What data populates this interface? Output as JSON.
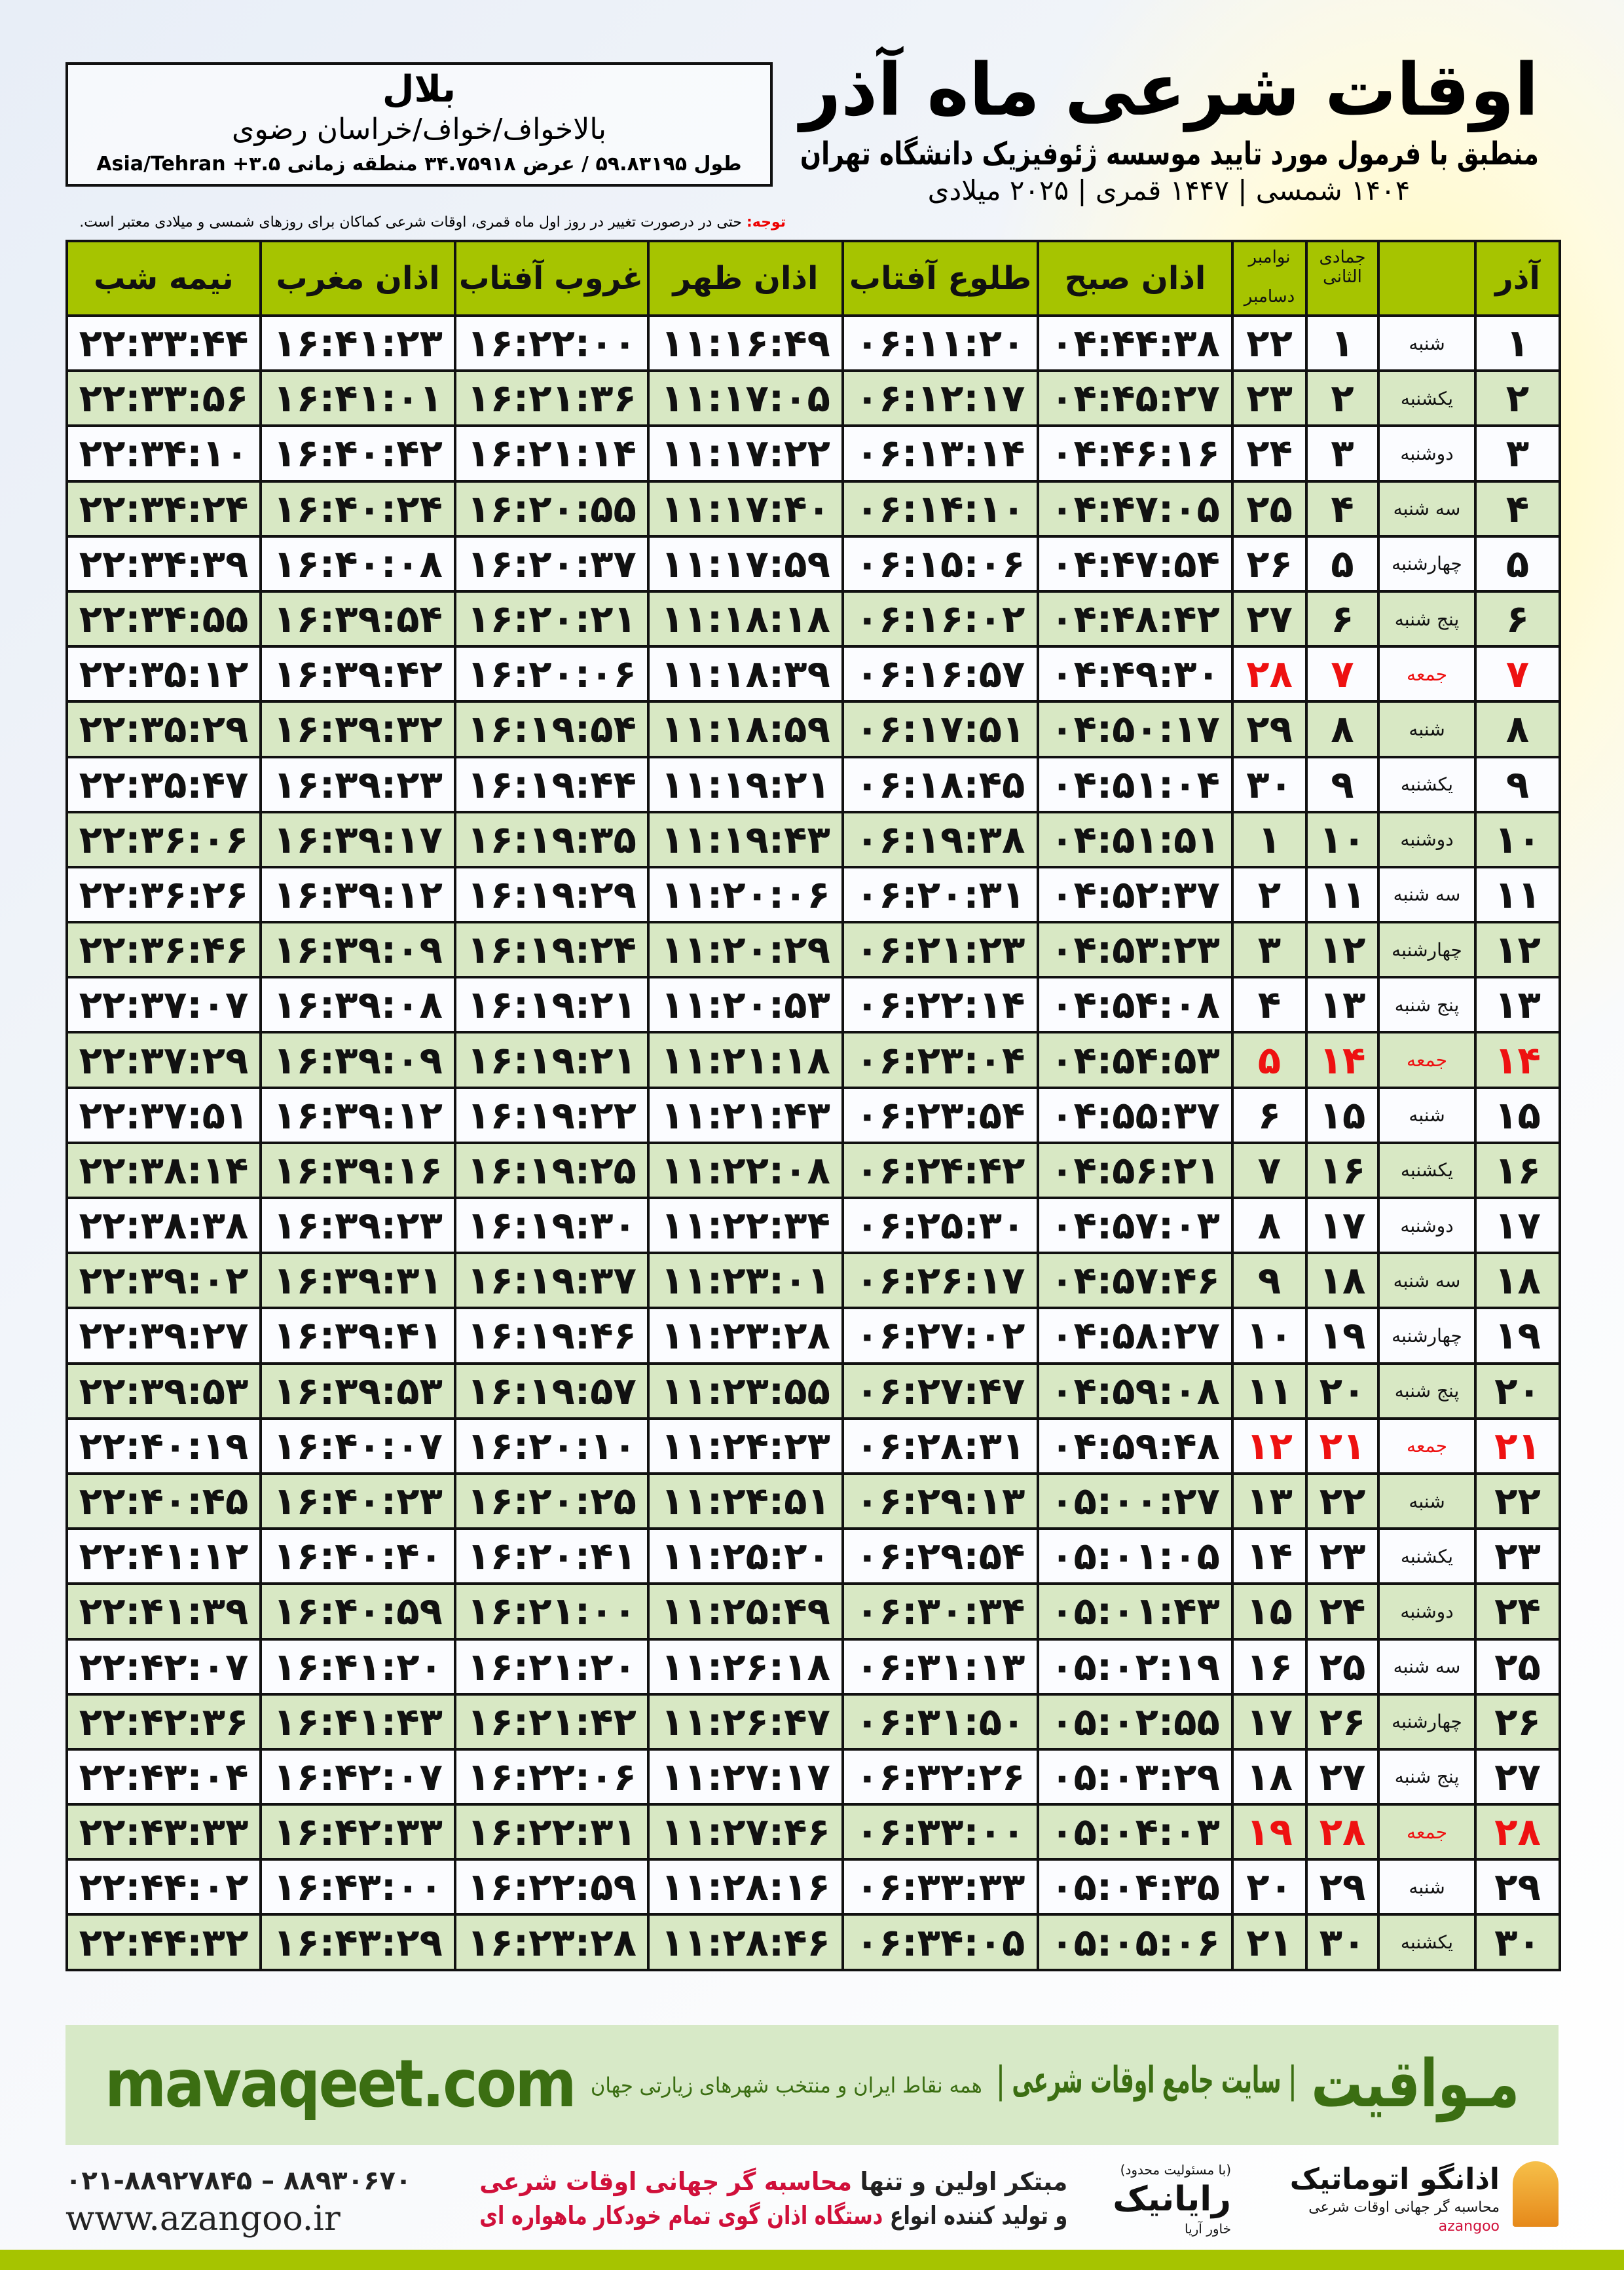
{
  "header": {
    "title": "اوقات شرعی ماه آذر",
    "subtitle": "منطبق با فرمول مورد تایید موسسه ژئوفیزیک دانشگاه تهران",
    "dateline": "۱۴۰۴ شمسی | ۱۴۴۷ قمری | ۲۰۲۵ میلادی"
  },
  "location": {
    "name": "بلال",
    "path": "بالاخواف/خواف/خراسان رضوی",
    "coords": "طول ۵۹.۸۳۱۹۵ / عرض ۳۴.۷۵۹۱۸ منطقه زمانی ۳.۵+ Asia/Tehran"
  },
  "note": {
    "label": "توجه:",
    "text": " حتی در درصورت تغییر در روز اول ماه قمری، اوقات شرعی کماکان برای روزهای شمسی و میلادی معتبر است."
  },
  "columns": {
    "midnight": "نیمه شب",
    "maghrib": "اذان مغرب",
    "sunset": "غروب آفتاب",
    "zuhr": "اذان ظهر",
    "sunrise": "طلوع آفتاب",
    "fajr": "اذان صبح",
    "gregorian_top": "نوامبر",
    "gregorian_bottom": "دسامبر",
    "hijri": "جمادی الثانی",
    "azar": "آذر"
  },
  "colors": {
    "header_green": "#a6c400",
    "row_green": "#d8e8c4",
    "holiday_red": "#e11111",
    "brand_green": "#3b6e12"
  },
  "rows": [
    [
      "۱",
      "شنبه",
      "۱",
      "۲۲",
      "۰۴:۴۴:۳۸",
      "۰۶:۱۱:۲۰",
      "۱۱:۱۶:۴۹",
      "۱۶:۲۲:۰۰",
      "۱۶:۴۱:۲۳",
      "۲۲:۳۳:۴۴"
    ],
    [
      "۲",
      "یکشنبه",
      "۲",
      "۲۳",
      "۰۴:۴۵:۲۷",
      "۰۶:۱۲:۱۷",
      "۱۱:۱۷:۰۵",
      "۱۶:۲۱:۳۶",
      "۱۶:۴۱:۰۱",
      "۲۲:۳۳:۵۶"
    ],
    [
      "۳",
      "دوشنبه",
      "۳",
      "۲۴",
      "۰۴:۴۶:۱۶",
      "۰۶:۱۳:۱۴",
      "۱۱:۱۷:۲۲",
      "۱۶:۲۱:۱۴",
      "۱۶:۴۰:۴۲",
      "۲۲:۳۴:۱۰"
    ],
    [
      "۴",
      "سه شنبه",
      "۴",
      "۲۵",
      "۰۴:۴۷:۰۵",
      "۰۶:۱۴:۱۰",
      "۱۱:۱۷:۴۰",
      "۱۶:۲۰:۵۵",
      "۱۶:۴۰:۲۴",
      "۲۲:۳۴:۲۴"
    ],
    [
      "۵",
      "چهارشنبه",
      "۵",
      "۲۶",
      "۰۴:۴۷:۵۴",
      "۰۶:۱۵:۰۶",
      "۱۱:۱۷:۵۹",
      "۱۶:۲۰:۳۷",
      "۱۶:۴۰:۰۸",
      "۲۲:۳۴:۳۹"
    ],
    [
      "۶",
      "پنج شنبه",
      "۶",
      "۲۷",
      "۰۴:۴۸:۴۲",
      "۰۶:۱۶:۰۲",
      "۱۱:۱۸:۱۸",
      "۱۶:۲۰:۲۱",
      "۱۶:۳۹:۵۴",
      "۲۲:۳۴:۵۵"
    ],
    [
      "۷",
      "جمعه",
      "۷",
      "۲۸",
      "۰۴:۴۹:۳۰",
      "۰۶:۱۶:۵۷",
      "۱۱:۱۸:۳۹",
      "۱۶:۲۰:۰۶",
      "۱۶:۳۹:۴۲",
      "۲۲:۳۵:۱۲"
    ],
    [
      "۸",
      "شنبه",
      "۸",
      "۲۹",
      "۰۴:۵۰:۱۷",
      "۰۶:۱۷:۵۱",
      "۱۱:۱۸:۵۹",
      "۱۶:۱۹:۵۴",
      "۱۶:۳۹:۳۲",
      "۲۲:۳۵:۲۹"
    ],
    [
      "۹",
      "یکشنبه",
      "۹",
      "۳۰",
      "۰۴:۵۱:۰۴",
      "۰۶:۱۸:۴۵",
      "۱۱:۱۹:۲۱",
      "۱۶:۱۹:۴۴",
      "۱۶:۳۹:۲۳",
      "۲۲:۳۵:۴۷"
    ],
    [
      "۱۰",
      "دوشنبه",
      "۱۰",
      "۱",
      "۰۴:۵۱:۵۱",
      "۰۶:۱۹:۳۸",
      "۱۱:۱۹:۴۳",
      "۱۶:۱۹:۳۵",
      "۱۶:۳۹:۱۷",
      "۲۲:۳۶:۰۶"
    ],
    [
      "۱۱",
      "سه شنبه",
      "۱۱",
      "۲",
      "۰۴:۵۲:۳۷",
      "۰۶:۲۰:۳۱",
      "۱۱:۲۰:۰۶",
      "۱۶:۱۹:۲۹",
      "۱۶:۳۹:۱۲",
      "۲۲:۳۶:۲۶"
    ],
    [
      "۱۲",
      "چهارشنبه",
      "۱۲",
      "۳",
      "۰۴:۵۳:۲۳",
      "۰۶:۲۱:۲۳",
      "۱۱:۲۰:۲۹",
      "۱۶:۱۹:۲۴",
      "۱۶:۳۹:۰۹",
      "۲۲:۳۶:۴۶"
    ],
    [
      "۱۳",
      "پنج شنبه",
      "۱۳",
      "۴",
      "۰۴:۵۴:۰۸",
      "۰۶:۲۲:۱۴",
      "۱۱:۲۰:۵۳",
      "۱۶:۱۹:۲۱",
      "۱۶:۳۹:۰۸",
      "۲۲:۳۷:۰۷"
    ],
    [
      "۱۴",
      "جمعه",
      "۱۴",
      "۵",
      "۰۴:۵۴:۵۳",
      "۰۶:۲۳:۰۴",
      "۱۱:۲۱:۱۸",
      "۱۶:۱۹:۲۱",
      "۱۶:۳۹:۰۹",
      "۲۲:۳۷:۲۹"
    ],
    [
      "۱۵",
      "شنبه",
      "۱۵",
      "۶",
      "۰۴:۵۵:۳۷",
      "۰۶:۲۳:۵۴",
      "۱۱:۲۱:۴۳",
      "۱۶:۱۹:۲۲",
      "۱۶:۳۹:۱۲",
      "۲۲:۳۷:۵۱"
    ],
    [
      "۱۶",
      "یکشنبه",
      "۱۶",
      "۷",
      "۰۴:۵۶:۲۱",
      "۰۶:۲۴:۴۲",
      "۱۱:۲۲:۰۸",
      "۱۶:۱۹:۲۵",
      "۱۶:۳۹:۱۶",
      "۲۲:۳۸:۱۴"
    ],
    [
      "۱۷",
      "دوشنبه",
      "۱۷",
      "۸",
      "۰۴:۵۷:۰۳",
      "۰۶:۲۵:۳۰",
      "۱۱:۲۲:۳۴",
      "۱۶:۱۹:۳۰",
      "۱۶:۳۹:۲۳",
      "۲۲:۳۸:۳۸"
    ],
    [
      "۱۸",
      "سه شنبه",
      "۱۸",
      "۹",
      "۰۴:۵۷:۴۶",
      "۰۶:۲۶:۱۷",
      "۱۱:۲۳:۰۱",
      "۱۶:۱۹:۳۷",
      "۱۶:۳۹:۳۱",
      "۲۲:۳۹:۰۲"
    ],
    [
      "۱۹",
      "چهارشنبه",
      "۱۹",
      "۱۰",
      "۰۴:۵۸:۲۷",
      "۰۶:۲۷:۰۲",
      "۱۱:۲۳:۲۸",
      "۱۶:۱۹:۴۶",
      "۱۶:۳۹:۴۱",
      "۲۲:۳۹:۲۷"
    ],
    [
      "۲۰",
      "پنج شنبه",
      "۲۰",
      "۱۱",
      "۰۴:۵۹:۰۸",
      "۰۶:۲۷:۴۷",
      "۱۱:۲۳:۵۵",
      "۱۶:۱۹:۵۷",
      "۱۶:۳۹:۵۳",
      "۲۲:۳۹:۵۳"
    ],
    [
      "۲۱",
      "جمعه",
      "۲۱",
      "۱۲",
      "۰۴:۵۹:۴۸",
      "۰۶:۲۸:۳۱",
      "۱۱:۲۴:۲۳",
      "۱۶:۲۰:۱۰",
      "۱۶:۴۰:۰۷",
      "۲۲:۴۰:۱۹"
    ],
    [
      "۲۲",
      "شنبه",
      "۲۲",
      "۱۳",
      "۰۵:۰۰:۲۷",
      "۰۶:۲۹:۱۳",
      "۱۱:۲۴:۵۱",
      "۱۶:۲۰:۲۵",
      "۱۶:۴۰:۲۳",
      "۲۲:۴۰:۴۵"
    ],
    [
      "۲۳",
      "یکشنبه",
      "۲۳",
      "۱۴",
      "۰۵:۰۱:۰۵",
      "۰۶:۲۹:۵۴",
      "۱۱:۲۵:۲۰",
      "۱۶:۲۰:۴۱",
      "۱۶:۴۰:۴۰",
      "۲۲:۴۱:۱۲"
    ],
    [
      "۲۴",
      "دوشنبه",
      "۲۴",
      "۱۵",
      "۰۵:۰۱:۴۳",
      "۰۶:۳۰:۳۴",
      "۱۱:۲۵:۴۹",
      "۱۶:۲۱:۰۰",
      "۱۶:۴۰:۵۹",
      "۲۲:۴۱:۳۹"
    ],
    [
      "۲۵",
      "سه شنبه",
      "۲۵",
      "۱۶",
      "۰۵:۰۲:۱۹",
      "۰۶:۳۱:۱۳",
      "۱۱:۲۶:۱۸",
      "۱۶:۲۱:۲۰",
      "۱۶:۴۱:۲۰",
      "۲۲:۴۲:۰۷"
    ],
    [
      "۲۶",
      "چهارشنبه",
      "۲۶",
      "۱۷",
      "۰۵:۰۲:۵۵",
      "۰۶:۳۱:۵۰",
      "۱۱:۲۶:۴۷",
      "۱۶:۲۱:۴۲",
      "۱۶:۴۱:۴۳",
      "۲۲:۴۲:۳۶"
    ],
    [
      "۲۷",
      "پنج شنبه",
      "۲۷",
      "۱۸",
      "۰۵:۰۳:۲۹",
      "۰۶:۳۲:۲۶",
      "۱۱:۲۷:۱۷",
      "۱۶:۲۲:۰۶",
      "۱۶:۴۲:۰۷",
      "۲۲:۴۳:۰۴"
    ],
    [
      "۲۸",
      "جمعه",
      "۲۸",
      "۱۹",
      "۰۵:۰۴:۰۳",
      "۰۶:۳۳:۰۰",
      "۱۱:۲۷:۴۶",
      "۱۶:۲۲:۳۱",
      "۱۶:۴۲:۳۳",
      "۲۲:۴۳:۳۳"
    ],
    [
      "۲۹",
      "شنبه",
      "۲۹",
      "۲۰",
      "۰۵:۰۴:۳۵",
      "۰۶:۳۳:۳۳",
      "۱۱:۲۸:۱۶",
      "۱۶:۲۲:۵۹",
      "۱۶:۴۳:۰۰",
      "۲۲:۴۴:۰۲"
    ],
    [
      "۳۰",
      "یکشنبه",
      "۳۰",
      "۲۱",
      "۰۵:۰۵:۰۶",
      "۰۶:۳۴:۰۵",
      "۱۱:۲۸:۴۶",
      "۱۶:۲۳:۲۸",
      "۱۶:۴۳:۲۹",
      "۲۲:۴۴:۳۲"
    ]
  ],
  "holiday_weekday": "جمعه",
  "banner": {
    "site": "mavaqeet.com",
    "brand": "مـواقیت",
    "tagline": "| سایت جامع اوقات شرعی |",
    "tagline2": "همه نقاط ایران و منتخب شهرهای زیارتی جهان"
  },
  "footer": {
    "phone": "۰۲۱-۸۸۹۲۷۸۴۵ – ۸۸۹۳۰۶۷۰",
    "web": "www.azangoo.ir",
    "line1a": "مبتکر اولین و تنها ",
    "line1b": "محاسبه گر جهانی اوقات شرعی",
    "line2a": "و تولید کننده انواع ",
    "line2b": "دستگاه اذان گوی تمام خودکار ماهواره ای",
    "rayanik": "رایانیک",
    "rayanik_sub": "خاور آریا",
    "rayanik_note": "(با مسئولیت محدود)",
    "azangoo": "اذانگو اتوماتیک",
    "azangoo_sub": "محاسبه گر جهانی اوقات شرعی",
    "azangoo_en": "azangoo"
  }
}
